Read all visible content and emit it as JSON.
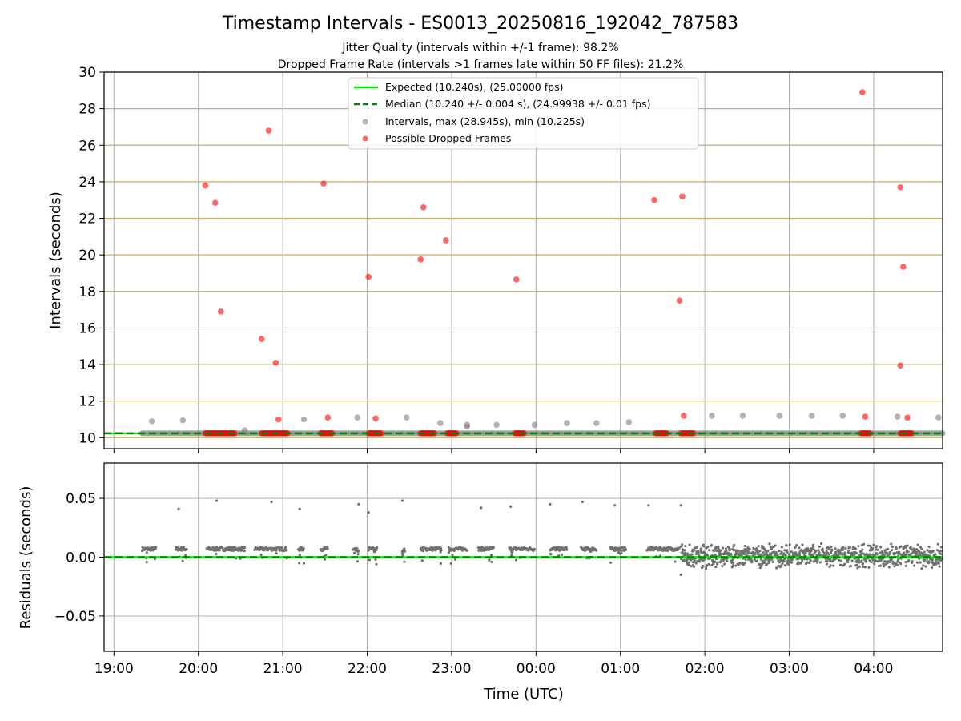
{
  "figure": {
    "title": "Timestamp Intervals - ES0013_20250816_192042_787583",
    "subtitle_1": "Jitter Quality (intervals within +/-1 frame): 98.2%",
    "subtitle_2": "Dropped Frame Rate (intervals >1 frames late within 50 FF files): 21.2%"
  },
  "colors": {
    "expected": "#00ee00",
    "median": "#008000",
    "intervals": "#808080",
    "dropped": "#ff0000",
    "residual_points": "#707070",
    "grid_major": "#b0b0b0",
    "grid_minor": "#c8b06a"
  },
  "chart_data": [
    {
      "type": "scatter",
      "panel": "intervals",
      "xlabel": "",
      "ylabel": "Intervals (seconds)",
      "xlim": [
        "2025-08-16 18:53",
        "2025-08-17 04:49"
      ],
      "ylim": [
        9.4,
        30
      ],
      "yticks": [
        10,
        12,
        14,
        16,
        18,
        20,
        22,
        24,
        26,
        28,
        30
      ],
      "xtick_labels": [
        "19:00",
        "20:00",
        "21:00",
        "22:00",
        "23:00",
        "00:00",
        "01:00",
        "02:00",
        "03:00",
        "04:00"
      ],
      "xtick_values": [
        "2025-08-16 19:00",
        "2025-08-16 20:00",
        "2025-08-16 21:00",
        "2025-08-16 22:00",
        "2025-08-16 23:00",
        "2025-08-17 00:00",
        "2025-08-17 01:00",
        "2025-08-17 02:00",
        "2025-08-17 03:00",
        "2025-08-17 04:00"
      ],
      "grid": true,
      "legend_position": "top-center",
      "lines": [
        {
          "name": "Expected (10.240s), (25.00000 fps)",
          "y": 10.24,
          "style": "solid"
        },
        {
          "name": "Median (10.240 +/- 0.004 s), (24.99938 +/- 0.01 fps)",
          "y": 10.24,
          "style": "dashed"
        }
      ],
      "series": [
        {
          "name": "Intervals, max (28.945s), min (10.225s)",
          "baseline_y": 10.24,
          "baseline_x_range": [
            "2025-08-16 19:20",
            "2025-08-17 04:49"
          ],
          "points": [
            {
              "x": "2025-08-16 19:27",
              "y": 10.9
            },
            {
              "x": "2025-08-16 19:49",
              "y": 10.95
            },
            {
              "x": "2025-08-16 20:33",
              "y": 10.4
            },
            {
              "x": "2025-08-16 21:15",
              "y": 11.0
            },
            {
              "x": "2025-08-16 21:53",
              "y": 11.1
            },
            {
              "x": "2025-08-16 22:28",
              "y": 11.1
            },
            {
              "x": "2025-08-16 22:52",
              "y": 10.8
            },
            {
              "x": "2025-08-16 23:11",
              "y": 10.7
            },
            {
              "x": "2025-08-16 23:11",
              "y": 10.6
            },
            {
              "x": "2025-08-16 23:32",
              "y": 10.7
            },
            {
              "x": "2025-08-16 23:59",
              "y": 10.7
            },
            {
              "x": "2025-08-17 00:22",
              "y": 10.8
            },
            {
              "x": "2025-08-17 00:43",
              "y": 10.8
            },
            {
              "x": "2025-08-17 01:06",
              "y": 10.85
            },
            {
              "x": "2025-08-17 02:05",
              "y": 11.2
            },
            {
              "x": "2025-08-17 02:27",
              "y": 11.2
            },
            {
              "x": "2025-08-17 02:53",
              "y": 11.2
            },
            {
              "x": "2025-08-17 03:16",
              "y": 11.2
            },
            {
              "x": "2025-08-17 03:38",
              "y": 11.2
            },
            {
              "x": "2025-08-17 04:17",
              "y": 11.15
            },
            {
              "x": "2025-08-17 04:46",
              "y": 11.1
            }
          ]
        },
        {
          "name": "Possible Dropped Frames",
          "points": [
            {
              "x": "2025-08-16 20:05",
              "y": 23.8
            },
            {
              "x": "2025-08-16 20:12",
              "y": 22.85
            },
            {
              "x": "2025-08-16 20:16",
              "y": 16.9
            },
            {
              "x": "2025-08-16 20:45",
              "y": 15.4
            },
            {
              "x": "2025-08-16 20:50",
              "y": 26.8
            },
            {
              "x": "2025-08-16 20:55",
              "y": 14.1
            },
            {
              "x": "2025-08-16 20:57",
              "y": 11.0
            },
            {
              "x": "2025-08-16 21:29",
              "y": 23.9
            },
            {
              "x": "2025-08-16 21:32",
              "y": 11.1
            },
            {
              "x": "2025-08-16 22:01",
              "y": 18.8
            },
            {
              "x": "2025-08-16 22:06",
              "y": 11.05
            },
            {
              "x": "2025-08-16 22:38",
              "y": 19.75
            },
            {
              "x": "2025-08-16 22:40",
              "y": 22.6
            },
            {
              "x": "2025-08-16 22:56",
              "y": 20.8
            },
            {
              "x": "2025-08-16 23:46",
              "y": 18.65
            },
            {
              "x": "2025-08-17 01:24",
              "y": 23.0
            },
            {
              "x": "2025-08-17 01:42",
              "y": 17.5
            },
            {
              "x": "2025-08-17 01:44",
              "y": 23.2
            },
            {
              "x": "2025-08-17 01:45",
              "y": 11.2
            },
            {
              "x": "2025-08-17 03:52",
              "y": 28.9
            },
            {
              "x": "2025-08-17 03:54",
              "y": 11.15
            },
            {
              "x": "2025-08-17 04:19",
              "y": 23.7
            },
            {
              "x": "2025-08-17 04:19",
              "y": 13.95
            },
            {
              "x": "2025-08-17 04:21",
              "y": 19.35
            },
            {
              "x": "2025-08-17 04:24",
              "y": 11.1
            }
          ],
          "baseline_y": 10.24,
          "baseline_clusters": [
            [
              "2025-08-16 20:05",
              "2025-08-16 20:26"
            ],
            [
              "2025-08-16 20:45",
              "2025-08-16 21:04"
            ],
            [
              "2025-08-16 21:27",
              "2025-08-16 21:35"
            ],
            [
              "2025-08-16 22:01",
              "2025-08-16 22:10"
            ],
            [
              "2025-08-16 22:38",
              "2025-08-16 22:48"
            ],
            [
              "2025-08-16 22:57",
              "2025-08-16 23:04"
            ],
            [
              "2025-08-16 23:45",
              "2025-08-16 23:52"
            ],
            [
              "2025-08-17 01:25",
              "2025-08-17 01:33"
            ],
            [
              "2025-08-17 01:43",
              "2025-08-17 01:52"
            ],
            [
              "2025-08-17 03:51",
              "2025-08-17 03:58"
            ],
            [
              "2025-08-17 04:19",
              "2025-08-17 04:27"
            ]
          ]
        }
      ]
    },
    {
      "type": "scatter",
      "panel": "residuals",
      "xlabel": "Time (UTC)",
      "ylabel": "Residuals (seconds)",
      "xlim": [
        "2025-08-16 18:53",
        "2025-08-17 04:49"
      ],
      "ylim": [
        -0.08,
        0.08
      ],
      "yticks": [
        -0.05,
        0.0,
        0.05
      ],
      "ytick_labels": [
        "−0.05",
        "0.00",
        "0.05"
      ],
      "grid": true,
      "zero_line": 0.0,
      "segments": [
        {
          "start": "2025-08-16 19:20",
          "end": "2025-08-16 19:30",
          "level": 0.007
        },
        {
          "start": "2025-08-16 19:44",
          "end": "2025-08-16 19:52",
          "level": 0.007
        },
        {
          "start": "2025-08-16 20:06",
          "end": "2025-08-16 20:33",
          "level": 0.007
        },
        {
          "start": "2025-08-16 20:40",
          "end": "2025-08-16 21:03",
          "level": 0.007
        },
        {
          "start": "2025-08-16 21:11",
          "end": "2025-08-16 21:15",
          "level": 0.007
        },
        {
          "start": "2025-08-16 21:27",
          "end": "2025-08-16 21:32",
          "level": 0.007
        },
        {
          "start": "2025-08-16 21:50",
          "end": "2025-08-16 21:54",
          "level": 0.006
        },
        {
          "start": "2025-08-16 22:01",
          "end": "2025-08-16 22:07",
          "level": 0.007
        },
        {
          "start": "2025-08-16 22:25",
          "end": "2025-08-16 22:27",
          "level": 0.006
        },
        {
          "start": "2025-08-16 22:38",
          "end": "2025-08-16 22:53",
          "level": 0.007
        },
        {
          "start": "2025-08-16 22:58",
          "end": "2025-08-16 23:11",
          "level": 0.007
        },
        {
          "start": "2025-08-16 23:19",
          "end": "2025-08-16 23:30",
          "level": 0.007
        },
        {
          "start": "2025-08-16 23:41",
          "end": "2025-08-16 23:59",
          "level": 0.007
        },
        {
          "start": "2025-08-17 00:10",
          "end": "2025-08-17 00:22",
          "level": 0.007
        },
        {
          "start": "2025-08-17 00:32",
          "end": "2025-08-17 00:43",
          "level": 0.007
        },
        {
          "start": "2025-08-17 00:53",
          "end": "2025-08-17 01:04",
          "level": 0.007
        },
        {
          "start": "2025-08-17 01:19",
          "end": "2025-08-17 01:42",
          "level": 0.007
        }
      ],
      "noise_band": {
        "start": "2025-08-17 01:43",
        "end": "2025-08-17 04:49",
        "min": -0.01,
        "max": 0.012
      },
      "outliers": [
        {
          "x": "2025-08-16 19:46",
          "y": 0.041
        },
        {
          "x": "2025-08-16 20:13",
          "y": 0.048
        },
        {
          "x": "2025-08-16 20:52",
          "y": 0.047
        },
        {
          "x": "2025-08-16 21:12",
          "y": 0.041
        },
        {
          "x": "2025-08-16 21:54",
          "y": 0.045
        },
        {
          "x": "2025-08-16 22:01",
          "y": 0.038
        },
        {
          "x": "2025-08-16 22:25",
          "y": 0.048
        },
        {
          "x": "2025-08-16 23:21",
          "y": 0.042
        },
        {
          "x": "2025-08-16 23:42",
          "y": 0.043
        },
        {
          "x": "2025-08-17 00:10",
          "y": 0.045
        },
        {
          "x": "2025-08-17 00:33",
          "y": 0.047
        },
        {
          "x": "2025-08-17 00:56",
          "y": 0.044
        },
        {
          "x": "2025-08-17 01:20",
          "y": 0.044
        },
        {
          "x": "2025-08-17 01:43",
          "y": 0.044
        },
        {
          "x": "2025-08-17 01:43",
          "y": -0.015
        }
      ]
    }
  ]
}
